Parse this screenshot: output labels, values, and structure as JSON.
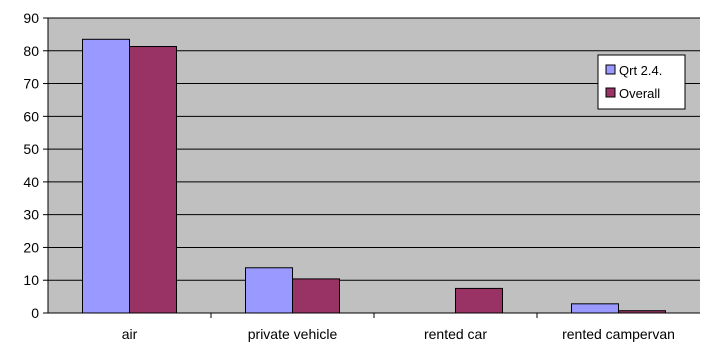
{
  "chart_data": {
    "type": "bar",
    "categories": [
      "air",
      "private vehicle",
      "rented car",
      "rented campervan"
    ],
    "series": [
      {
        "name": "Qrt 2.4.",
        "values": [
          83.5,
          13.8,
          0,
          2.8
        ],
        "color": "#9999ff"
      },
      {
        "name": "Overall",
        "values": [
          81.3,
          10.4,
          7.5,
          0.7
        ],
        "color": "#993366"
      }
    ],
    "ylim": [
      0,
      90
    ],
    "yticks": [
      0,
      10,
      20,
      30,
      40,
      50,
      60,
      70,
      80,
      90
    ],
    "grid": true,
    "legend": "right",
    "plot_background": "#c0c0c0"
  }
}
